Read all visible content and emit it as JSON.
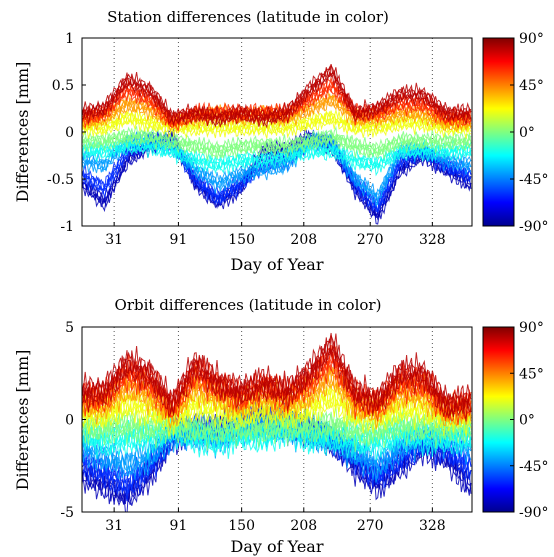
{
  "chart_data": [
    {
      "type": "line",
      "title": "Station differences (latitude in color)",
      "xlabel": "Day of Year",
      "ylabel": "Differences [mm]",
      "xlim": [
        1,
        365
      ],
      "ylim": [
        -1,
        1
      ],
      "xticks": [
        31,
        91,
        150,
        208,
        270,
        328
      ],
      "yticks": [
        -1,
        -0.5,
        0,
        0.5,
        1
      ],
      "ytick_labels": [
        "-1",
        "-0.5",
        "0",
        "0.5",
        "1"
      ],
      "grid": "vertical dotted lines at x ticks",
      "colorbar": {
        "label_values": [
          "90°",
          "45°",
          "0°",
          "-45°",
          "-90°"
        ],
        "range": [
          -90,
          90
        ],
        "colormap": "jet"
      },
      "series": [
        {
          "latitude": 80,
          "values": [
            0.2,
            0.25,
            0.55,
            0.45,
            0.15,
            0.2,
            0.15,
            0.2,
            0.15,
            0.2,
            0.45,
            0.65,
            0.2,
            0.25,
            0.4,
            0.4,
            0.2,
            0.2
          ]
        },
        {
          "latitude": 60,
          "values": [
            0.15,
            0.2,
            0.45,
            0.35,
            0.1,
            0.2,
            0.2,
            0.2,
            0.2,
            0.2,
            0.35,
            0.5,
            0.2,
            0.2,
            0.3,
            0.3,
            0.15,
            0.15
          ]
        },
        {
          "latitude": 40,
          "values": [
            0.1,
            0.15,
            0.3,
            0.25,
            0.1,
            0.15,
            0.2,
            0.15,
            0.2,
            0.15,
            0.25,
            0.35,
            0.15,
            0.15,
            0.2,
            0.2,
            0.1,
            0.1
          ]
        },
        {
          "latitude": 20,
          "values": [
            0.05,
            0.05,
            0.15,
            0.1,
            0.05,
            0.05,
            0.05,
            0.05,
            0.05,
            0.05,
            0.1,
            0.15,
            0.05,
            0.05,
            0.1,
            0.1,
            0.05,
            0.05
          ]
        },
        {
          "latitude": 0,
          "values": [
            -0.1,
            -0.1,
            -0.05,
            -0.05,
            -0.1,
            -0.15,
            -0.2,
            -0.15,
            -0.15,
            -0.15,
            -0.1,
            -0.05,
            -0.15,
            -0.2,
            -0.1,
            -0.1,
            -0.1,
            -0.1
          ]
        },
        {
          "latitude": -20,
          "values": [
            -0.2,
            -0.2,
            -0.15,
            -0.15,
            -0.2,
            -0.3,
            -0.35,
            -0.3,
            -0.3,
            -0.25,
            -0.2,
            -0.2,
            -0.3,
            -0.35,
            -0.2,
            -0.2,
            -0.2,
            -0.2
          ]
        },
        {
          "latitude": -40,
          "values": [
            -0.3,
            -0.35,
            -0.1,
            -0.1,
            -0.15,
            -0.4,
            -0.55,
            -0.45,
            -0.4,
            -0.35,
            -0.1,
            -0.1,
            -0.5,
            -0.7,
            -0.2,
            -0.2,
            -0.3,
            -0.35
          ]
        },
        {
          "latitude": -60,
          "values": [
            -0.45,
            -0.6,
            -0.2,
            -0.1,
            -0.1,
            -0.5,
            -0.7,
            -0.55,
            -0.35,
            -0.3,
            -0.1,
            -0.1,
            -0.55,
            -0.8,
            -0.3,
            -0.2,
            -0.35,
            -0.45
          ]
        },
        {
          "latitude": -80,
          "values": [
            -0.55,
            -0.75,
            -0.3,
            -0.15,
            -0.05,
            -0.55,
            -0.75,
            -0.6,
            -0.2,
            -0.2,
            -0.05,
            -0.15,
            -0.6,
            -0.9,
            -0.4,
            -0.25,
            -0.4,
            -0.55
          ]
        }
      ],
      "x": [
        1,
        22,
        43,
        64,
        85,
        107,
        128,
        149,
        170,
        192,
        213,
        234,
        256,
        277,
        298,
        319,
        341,
        362
      ]
    },
    {
      "type": "line",
      "title": "Orbit differences (latitude in color)",
      "xlabel": "Day of Year",
      "ylabel": "Differences [mm]",
      "xlim": [
        1,
        365
      ],
      "ylim": [
        -5,
        5
      ],
      "xticks": [
        31,
        91,
        150,
        208,
        270,
        328
      ],
      "yticks": [
        -5,
        0,
        5
      ],
      "ytick_labels": [
        "-5",
        "0",
        "5"
      ],
      "grid": "vertical dotted lines at x ticks",
      "colorbar": {
        "label_values": [
          "90°",
          "45°",
          "0°",
          "-45°",
          "-90°"
        ],
        "range": [
          -90,
          90
        ],
        "colormap": "jet"
      },
      "series": [
        {
          "latitude": 80,
          "values": [
            1.5,
            1.5,
            3.0,
            2.5,
            0.8,
            3.0,
            2.0,
            1.5,
            2.0,
            1.5,
            2.5,
            4.0,
            1.5,
            1.0,
            2.5,
            2.5,
            0.8,
            1.0
          ]
        },
        {
          "latitude": 60,
          "values": [
            1.2,
            1.2,
            2.5,
            2.0,
            0.6,
            2.5,
            1.8,
            1.2,
            1.8,
            1.3,
            2.0,
            3.3,
            1.2,
            0.8,
            2.0,
            2.0,
            0.6,
            0.8
          ]
        },
        {
          "latitude": 40,
          "values": [
            0.8,
            0.8,
            1.8,
            1.4,
            0.3,
            1.8,
            1.3,
            0.8,
            1.3,
            0.9,
            1.4,
            2.4,
            0.8,
            0.5,
            1.5,
            1.4,
            0.4,
            0.5
          ]
        },
        {
          "latitude": 20,
          "values": [
            0.3,
            0.3,
            0.8,
            0.6,
            0.0,
            0.8,
            0.6,
            0.3,
            0.6,
            0.4,
            0.6,
            1.2,
            0.3,
            0.2,
            0.6,
            0.6,
            0.1,
            0.2
          ]
        },
        {
          "latitude": 0,
          "values": [
            -0.3,
            -0.5,
            -0.3,
            -0.5,
            -0.3,
            -0.5,
            -0.5,
            -0.4,
            -0.5,
            -0.3,
            -0.4,
            -0.3,
            -0.6,
            -0.6,
            -0.3,
            -0.4,
            -0.4,
            -0.4
          ]
        },
        {
          "latitude": -20,
          "values": [
            -0.8,
            -1.2,
            -1.0,
            -1.0,
            -0.5,
            -1.0,
            -1.2,
            -0.8,
            -1.0,
            -0.5,
            -1.0,
            -1.0,
            -1.2,
            -1.2,
            -0.8,
            -1.0,
            -1.0,
            -1.0
          ]
        },
        {
          "latitude": -40,
          "values": [
            -1.5,
            -2.0,
            -2.5,
            -2.0,
            -0.8,
            -0.8,
            -1.0,
            -0.5,
            -0.4,
            -0.5,
            -0.8,
            -1.0,
            -1.8,
            -2.5,
            -1.5,
            -1.0,
            -1.0,
            -1.5
          ]
        },
        {
          "latitude": -60,
          "values": [
            -2.2,
            -2.8,
            -3.5,
            -2.5,
            -0.8,
            -0.5,
            -0.8,
            -0.3,
            0.0,
            -0.3,
            -0.5,
            -1.0,
            -2.0,
            -3.0,
            -2.0,
            -1.2,
            -1.5,
            -2.5
          ]
        },
        {
          "latitude": -80,
          "values": [
            -3.0,
            -3.5,
            -4.2,
            -3.0,
            -1.0,
            -0.5,
            -0.5,
            0.0,
            0.2,
            -0.2,
            -0.5,
            -1.2,
            -2.5,
            -3.5,
            -2.5,
            -1.5,
            -2.0,
            -3.5
          ]
        }
      ],
      "x": [
        1,
        22,
        43,
        64,
        85,
        107,
        128,
        149,
        170,
        192,
        213,
        234,
        256,
        277,
        298,
        319,
        341,
        362
      ]
    }
  ]
}
